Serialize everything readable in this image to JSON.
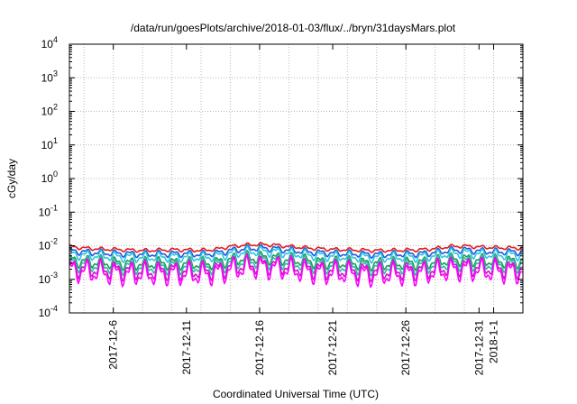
{
  "chart_data": {
    "type": "line",
    "title": "/data/run/goesPlots/archive/2018-01-03/flux/../bryn/31daysMars.plot",
    "xlabel": "Coordinated Universal Time (UTC)",
    "ylabel": "cGy/day",
    "yscale": "log",
    "ylim": [
      0.0001,
      10000
    ],
    "xlim": [
      "2017-12-03T00:00",
      "2018-01-03T00:00"
    ],
    "grid": true,
    "legend": "none",
    "y_ticks": [
      {
        "base": "10",
        "exp": "-4"
      },
      {
        "base": "10",
        "exp": "-3"
      },
      {
        "base": "10",
        "exp": "-2"
      },
      {
        "base": "10",
        "exp": "-1"
      },
      {
        "base": "10",
        "exp": "0"
      },
      {
        "base": "10",
        "exp": "1"
      },
      {
        "base": "10",
        "exp": "2"
      },
      {
        "base": "10",
        "exp": "3"
      },
      {
        "base": "10",
        "exp": "4"
      }
    ],
    "x_ticks": [
      {
        "date": "2017-12-06",
        "label": "2017-12-6"
      },
      {
        "date": "2017-12-11",
        "label": "2017-12-11"
      },
      {
        "date": "2017-12-16",
        "label": "2017-12-16"
      },
      {
        "date": "2017-12-21",
        "label": "2017-12-21"
      },
      {
        "date": "2017-12-26",
        "label": "2017-12-26"
      },
      {
        "date": "2017-12-31",
        "label": "2017-12-31"
      },
      {
        "date": "2018-01-01",
        "label": "2018-1-1"
      }
    ],
    "x_grid_dates": [
      "2017-12-04",
      "2017-12-06",
      "2017-12-08",
      "2017-12-10",
      "2017-12-12",
      "2017-12-14",
      "2017-12-16",
      "2017-12-18",
      "2017-12-20",
      "2017-12-22",
      "2017-12-24",
      "2017-12-26",
      "2017-12-28",
      "2017-12-30",
      "2018-01-01"
    ],
    "x": [
      "2017-12-03",
      "2017-12-04",
      "2017-12-05",
      "2017-12-06",
      "2017-12-07",
      "2017-12-08",
      "2017-12-09",
      "2017-12-10",
      "2017-12-11",
      "2017-12-12",
      "2017-12-13",
      "2017-12-14",
      "2017-12-15",
      "2017-12-16",
      "2017-12-17",
      "2017-12-18",
      "2017-12-19",
      "2017-12-20",
      "2017-12-21",
      "2017-12-22",
      "2017-12-23",
      "2017-12-24",
      "2017-12-25",
      "2017-12-26",
      "2017-12-27",
      "2017-12-28",
      "2017-12-29",
      "2017-12-30",
      "2017-12-31",
      "2018-01-01",
      "2018-01-02",
      "2018-01-03"
    ],
    "series": [
      {
        "color": "#e41a1c",
        "values": [
          0.0095,
          0.0085,
          0.008,
          0.0078,
          0.0075,
          0.0072,
          0.0074,
          0.0076,
          0.0075,
          0.0073,
          0.0078,
          0.0095,
          0.0105,
          0.011,
          0.0105,
          0.0095,
          0.0088,
          0.0082,
          0.0078,
          0.0076,
          0.0074,
          0.0072,
          0.0073,
          0.0074,
          0.0076,
          0.0082,
          0.0095,
          0.0098,
          0.0092,
          0.0088,
          0.0086,
          0.0085
        ]
      },
      {
        "color": "#1f5bd6",
        "values": [
          0.0072,
          0.0065,
          0.0062,
          0.006,
          0.0058,
          0.0056,
          0.0057,
          0.0058,
          0.0058,
          0.0056,
          0.006,
          0.0072,
          0.0082,
          0.0086,
          0.0082,
          0.0074,
          0.0068,
          0.0063,
          0.006,
          0.0058,
          0.0057,
          0.0055,
          0.0056,
          0.0057,
          0.0058,
          0.0063,
          0.0073,
          0.0076,
          0.007,
          0.0067,
          0.0066,
          0.0065
        ]
      },
      {
        "color": "#2ec4e8",
        "values": [
          0.0058,
          0.0052,
          0.005,
          0.0048,
          0.0046,
          0.0045,
          0.0046,
          0.0047,
          0.0046,
          0.0045,
          0.0048,
          0.0058,
          0.0066,
          0.0069,
          0.0066,
          0.006,
          0.0055,
          0.0051,
          0.0048,
          0.0047,
          0.0046,
          0.0044,
          0.0045,
          0.0046,
          0.0047,
          0.0051,
          0.0059,
          0.0061,
          0.0057,
          0.0054,
          0.0053,
          0.0052
        ]
      },
      {
        "color": "#1a9e5a",
        "values": [
          0.0038,
          0.0034,
          0.0032,
          0.0031,
          0.003,
          0.0029,
          0.003,
          0.0031,
          0.003,
          0.0029,
          0.0031,
          0.0038,
          0.0043,
          0.0045,
          0.0043,
          0.0039,
          0.0036,
          0.0033,
          0.0031,
          0.0031,
          0.003,
          0.0029,
          0.0029,
          0.003,
          0.0031,
          0.0033,
          0.0038,
          0.004,
          0.0037,
          0.0035,
          0.0034,
          0.0034
        ]
      },
      {
        "color": "#33b8a8",
        "values": [
          0.0031,
          0.0028,
          0.0026,
          0.0025,
          0.0024,
          0.0024,
          0.0024,
          0.0025,
          0.0024,
          0.0024,
          0.0025,
          0.0031,
          0.0035,
          0.0037,
          0.0035,
          0.0032,
          0.0029,
          0.0027,
          0.0025,
          0.0025,
          0.0024,
          0.0023,
          0.0024,
          0.0024,
          0.0025,
          0.0027,
          0.0031,
          0.0032,
          0.003,
          0.0029,
          0.0028,
          0.0028
        ]
      },
      {
        "color": "#c21fc2",
        "values": [
          0.0024,
          0.0021,
          0.002,
          0.0019,
          0.0018,
          0.0018,
          0.0018,
          0.0019,
          0.0018,
          0.0018,
          0.0019,
          0.0024,
          0.0027,
          0.0028,
          0.0027,
          0.0024,
          0.0022,
          0.002,
          0.0019,
          0.0019,
          0.0018,
          0.0017,
          0.0018,
          0.0018,
          0.0019,
          0.002,
          0.0024,
          0.0025,
          0.0023,
          0.0022,
          0.0021,
          0.0021
        ]
      },
      {
        "color": "#ff00ff",
        "values": [
          0.0019,
          0.0017,
          0.0016,
          0.0015,
          0.0014,
          0.0014,
          0.0014,
          0.0015,
          0.0014,
          0.0014,
          0.0015,
          0.0019,
          0.0022,
          0.0023,
          0.0022,
          0.0019,
          0.0017,
          0.0016,
          0.0015,
          0.0015,
          0.0014,
          0.0013,
          0.0014,
          0.0014,
          0.0015,
          0.0016,
          0.0019,
          0.002,
          0.0018,
          0.0017,
          0.0017,
          0.0016
        ]
      }
    ]
  }
}
